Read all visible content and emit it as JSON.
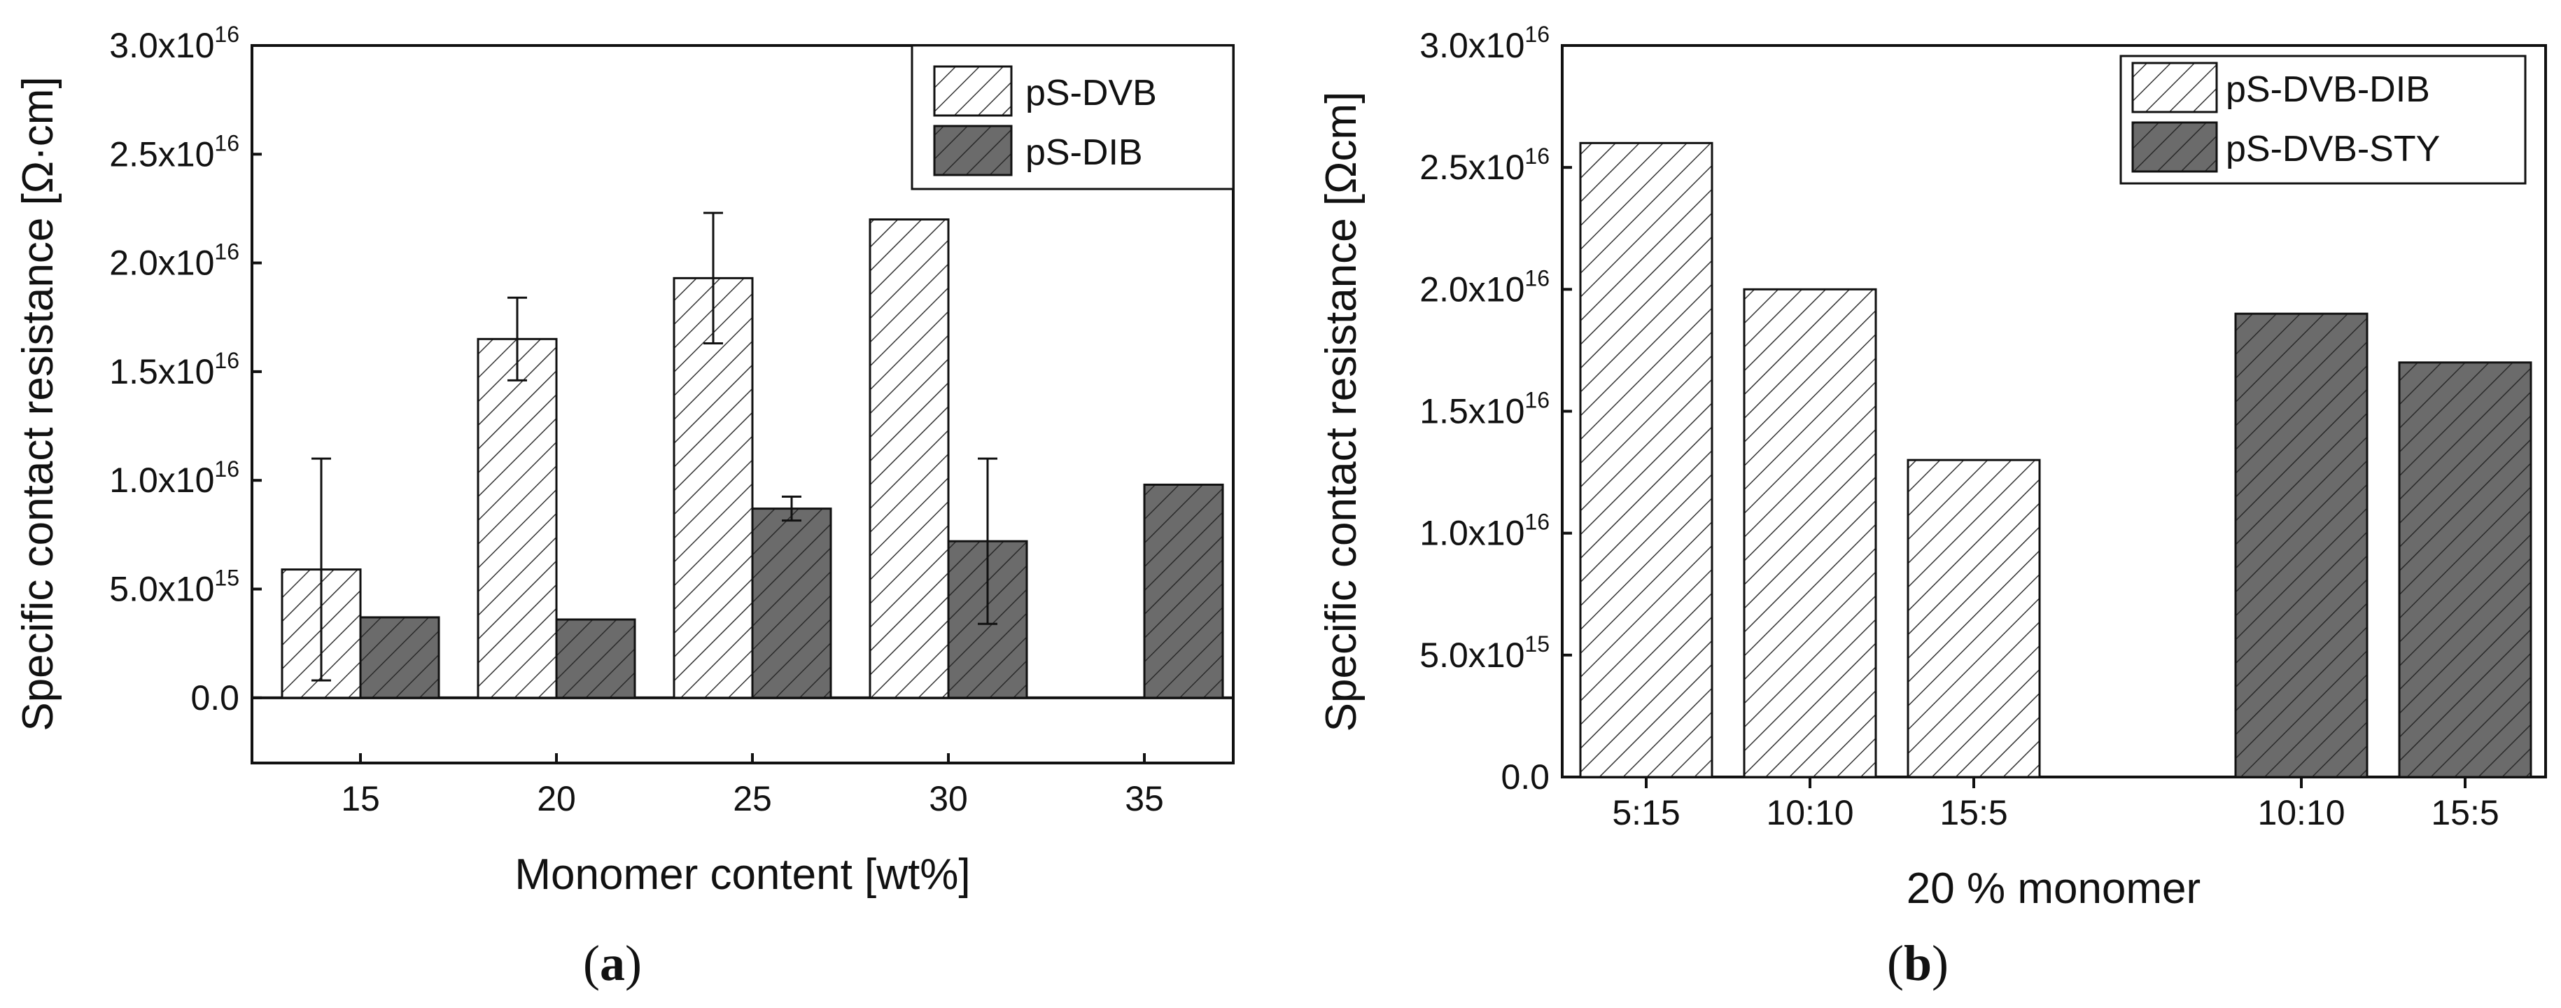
{
  "colors": {
    "axis": "#111111",
    "hatch": "#333333",
    "dark_fill": "#6b6b6b",
    "background": "#ffffff"
  },
  "chart_data": [
    {
      "type": "bar",
      "panel_label": "a",
      "categories": [
        "15",
        "20",
        "25",
        "30",
        "35"
      ],
      "xlabel": "Monomer content [wt%]",
      "ylabel": "Specific contact resistance [Ω·cm]",
      "ylim": [
        -3000000000000000.0,
        3e+16
      ],
      "yticks": [
        {
          "value": 0,
          "label": "0.0"
        },
        {
          "value": 5000000000000000.0,
          "label": "5.0x10",
          "exp": "15"
        },
        {
          "value": 1e+16,
          "label": "1.0x10",
          "exp": "16"
        },
        {
          "value": 1.5e+16,
          "label": "1.5x10",
          "exp": "16"
        },
        {
          "value": 2e+16,
          "label": "2.0x10",
          "exp": "16"
        },
        {
          "value": 2.5e+16,
          "label": "2.5x10",
          "exp": "16"
        },
        {
          "value": 3e+16,
          "label": "3.0x10",
          "exp": "16"
        }
      ],
      "legend_position": "top-right",
      "series": [
        {
          "name": "pS-DVB",
          "style": "hatched",
          "values": [
            5900000000000000.0,
            1.65e+16,
            1.93e+16,
            2.2e+16,
            null
          ],
          "errors": [
            5100000000000000.0,
            1900000000000000.0,
            3000000000000000.0,
            null,
            null
          ]
        },
        {
          "name": "pS-DIB",
          "style": "dark",
          "values": [
            3700000000000000.0,
            3600000000000000.0,
            8700000000000000.0,
            7200000000000000.0,
            9800000000000000.0
          ],
          "errors": [
            null,
            null,
            550000000000000.0,
            3800000000000000.0,
            null
          ]
        }
      ]
    },
    {
      "type": "bar",
      "panel_label": "b",
      "categories": [
        "5:15",
        "10:10",
        "15:5",
        "10:10",
        "15:5"
      ],
      "xlabel": "20 % monomer",
      "ylabel": "Specific contact resistance [Ωcm]",
      "ylim": [
        0,
        3e+16
      ],
      "yticks": [
        {
          "value": 0,
          "label": "0.0"
        },
        {
          "value": 5000000000000000.0,
          "label": "5.0x10",
          "exp": "15"
        },
        {
          "value": 1e+16,
          "label": "1.0x10",
          "exp": "16"
        },
        {
          "value": 1.5e+16,
          "label": "1.5x10",
          "exp": "16"
        },
        {
          "value": 2e+16,
          "label": "2.0x10",
          "exp": "16"
        },
        {
          "value": 2.5e+16,
          "label": "2.5x10",
          "exp": "16"
        },
        {
          "value": 3e+16,
          "label": "3.0x10",
          "exp": "16"
        }
      ],
      "legend_position": "top-right",
      "series": [
        {
          "name": "pS-DVB-DIB",
          "style": "hatched",
          "values": [
            2.6e+16,
            2e+16,
            1.3e+16,
            null,
            null
          ]
        },
        {
          "name": "pS-DVB-STY",
          "style": "dark-hatched",
          "values": [
            null,
            null,
            null,
            1.9e+16,
            1.7e+16
          ]
        }
      ]
    }
  ]
}
